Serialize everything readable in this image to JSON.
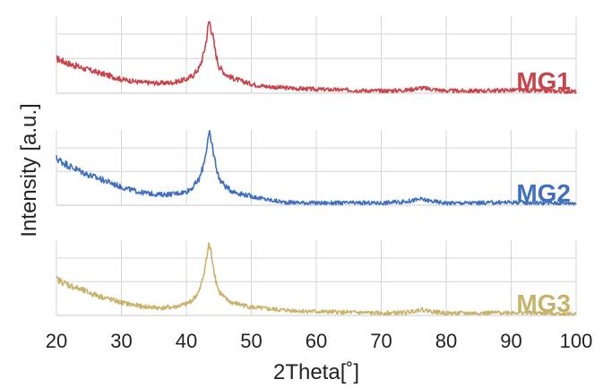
{
  "chart_data": {
    "type": "line",
    "title": "",
    "xlabel": "2Theta[˚]",
    "ylabel": "Intensity [a.u.]",
    "xlim": [
      20,
      100
    ],
    "x_ticks": [
      "20",
      "30",
      "40",
      "50",
      "60",
      "70",
      "80",
      "90",
      "100"
    ],
    "grid": true,
    "layout": "three stacked panels sharing the x axis, label at right of each panel",
    "series": [
      {
        "name": "MG1",
        "color": "#c8444a",
        "ylim": [
          0,
          1
        ],
        "x": [
          20,
          22,
          25,
          28,
          30,
          33,
          36,
          38,
          40,
          41,
          42,
          42.5,
          43,
          43.5,
          44,
          44.5,
          45,
          46,
          47,
          48,
          50,
          52,
          55,
          60,
          65,
          70,
          74,
          76,
          78,
          80,
          85,
          90,
          95,
          100
        ],
        "values": [
          0.45,
          0.38,
          0.3,
          0.23,
          0.18,
          0.14,
          0.13,
          0.14,
          0.18,
          0.23,
          0.33,
          0.46,
          0.65,
          0.95,
          0.78,
          0.52,
          0.35,
          0.25,
          0.2,
          0.17,
          0.12,
          0.09,
          0.07,
          0.05,
          0.04,
          0.03,
          0.04,
          0.07,
          0.05,
          0.03,
          0.03,
          0.04,
          0.03,
          0.02
        ]
      },
      {
        "name": "MG2",
        "color": "#3f6fbf",
        "ylim": [
          0,
          1
        ],
        "x": [
          20,
          22,
          25,
          28,
          30,
          33,
          36,
          38,
          40,
          41,
          42,
          42.5,
          43,
          43.5,
          44,
          44.5,
          45,
          46,
          47,
          48,
          50,
          52,
          55,
          60,
          65,
          70,
          74,
          76,
          78,
          80,
          85,
          90,
          95,
          100
        ],
        "values": [
          0.62,
          0.52,
          0.4,
          0.31,
          0.24,
          0.17,
          0.14,
          0.15,
          0.18,
          0.24,
          0.35,
          0.49,
          0.7,
          0.95,
          0.78,
          0.55,
          0.36,
          0.25,
          0.19,
          0.16,
          0.12,
          0.08,
          0.04,
          0.03,
          0.03,
          0.03,
          0.05,
          0.08,
          0.05,
          0.03,
          0.03,
          0.04,
          0.03,
          0.03
        ]
      },
      {
        "name": "MG3",
        "color": "#c9b36b",
        "ylim": [
          0,
          1
        ],
        "x": [
          20,
          22,
          25,
          28,
          30,
          33,
          36,
          38,
          40,
          41,
          42,
          42.5,
          43,
          43.5,
          44,
          44.5,
          45,
          46,
          47,
          48,
          50,
          52,
          55,
          60,
          65,
          70,
          74,
          76,
          78,
          80,
          85,
          90,
          95,
          100
        ],
        "values": [
          0.48,
          0.4,
          0.3,
          0.22,
          0.17,
          0.12,
          0.1,
          0.11,
          0.15,
          0.21,
          0.32,
          0.48,
          0.7,
          0.95,
          0.75,
          0.48,
          0.32,
          0.22,
          0.17,
          0.15,
          0.11,
          0.09,
          0.07,
          0.05,
          0.04,
          0.03,
          0.04,
          0.08,
          0.05,
          0.03,
          0.03,
          0.04,
          0.03,
          0.02
        ]
      }
    ]
  }
}
